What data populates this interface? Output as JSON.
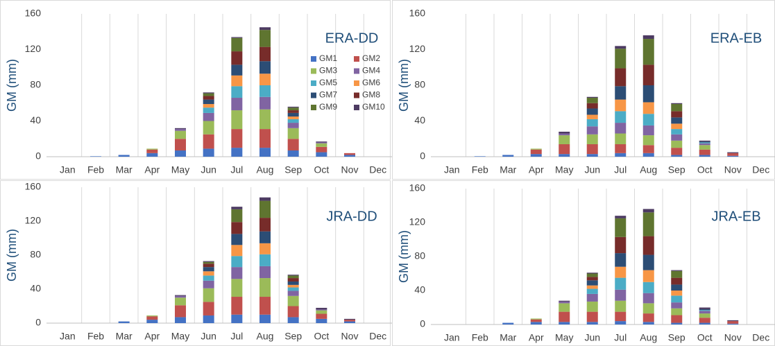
{
  "chart_data": [
    {
      "type": "bar",
      "stacked": true,
      "title": "ERA-DD",
      "y_label": "GM (mm)",
      "legend": true,
      "grid": "x",
      "categories": [
        "Jan",
        "Feb",
        "Mar",
        "Apr",
        "May",
        "Jun",
        "Jul",
        "Aug",
        "Sep",
        "Oct",
        "Nov",
        "Dec"
      ],
      "ylim": [
        0,
        160
      ],
      "yticks": [
        0,
        40,
        80,
        120,
        160
      ],
      "series": [
        {
          "name": "GM1",
          "color": "#4472c4",
          "values": [
            0,
            0.5,
            2,
            4,
            7,
            9,
            10,
            10,
            7,
            5,
            2,
            0
          ]
        },
        {
          "name": "GM2",
          "color": "#c0504d",
          "values": [
            0,
            0,
            0,
            4,
            13,
            16,
            21,
            21,
            13,
            6,
            2,
            0
          ]
        },
        {
          "name": "GM3",
          "color": "#9bbb59",
          "values": [
            0,
            0,
            0,
            1,
            9,
            15,
            21,
            22,
            12,
            4,
            0,
            0
          ]
        },
        {
          "name": "GM4",
          "color": "#8064a2",
          "values": [
            0,
            0,
            0,
            0,
            2,
            9,
            14,
            14,
            6,
            1,
            0,
            0
          ]
        },
        {
          "name": "GM5",
          "color": "#4bacc6",
          "values": [
            0,
            0,
            0,
            0,
            0,
            6,
            13,
            13,
            4,
            0,
            0,
            0
          ]
        },
        {
          "name": "GM6",
          "color": "#f79646",
          "values": [
            0,
            0,
            0,
            0,
            0,
            4,
            12,
            13,
            3,
            0,
            0,
            0
          ]
        },
        {
          "name": "GM7",
          "color": "#2c4d75",
          "values": [
            0,
            0,
            0,
            0,
            0,
            5,
            12,
            14,
            4,
            0,
            0,
            0
          ]
        },
        {
          "name": "GM8",
          "color": "#772c2a",
          "values": [
            0,
            0,
            0,
            0,
            0,
            4,
            15,
            16,
            3,
            0,
            0,
            0
          ]
        },
        {
          "name": "GM9",
          "color": "#5f7530",
          "values": [
            0,
            0,
            0,
            0,
            0,
            3,
            15,
            19,
            3,
            0,
            0,
            0
          ]
        },
        {
          "name": "GM10",
          "color": "#4d3b62",
          "values": [
            0,
            0,
            0,
            0,
            1,
            1,
            1,
            3,
            1,
            1,
            0,
            0
          ]
        }
      ]
    },
    {
      "type": "bar",
      "stacked": true,
      "title": "ERA-EB",
      "y_label": "GM (mm)",
      "legend": false,
      "grid": "x",
      "categories": [
        "Jan",
        "Feb",
        "Mar",
        "Apr",
        "May",
        "Jun",
        "Jul",
        "Aug",
        "Sep",
        "Oct",
        "Nov",
        "Dec"
      ],
      "ylim": [
        0,
        160
      ],
      "yticks": [
        0,
        40,
        80,
        120,
        160
      ],
      "series": [
        {
          "name": "GM1",
          "color": "#4472c4",
          "values": [
            0,
            0.5,
            2,
            3,
            3,
            3,
            4,
            4,
            2,
            2,
            1,
            0
          ]
        },
        {
          "name": "GM2",
          "color": "#c0504d",
          "values": [
            0,
            0,
            0,
            5,
            11,
            11,
            10,
            9,
            8,
            6,
            3,
            0
          ]
        },
        {
          "name": "GM3",
          "color": "#9bbb59",
          "values": [
            0,
            0,
            0,
            1,
            10,
            11,
            12,
            11,
            8,
            5,
            0,
            0
          ]
        },
        {
          "name": "GM4",
          "color": "#8064a2",
          "values": [
            0,
            0,
            0,
            0,
            2,
            9,
            12,
            11,
            7,
            2,
            0,
            0
          ]
        },
        {
          "name": "GM5",
          "color": "#4bacc6",
          "values": [
            0,
            0,
            0,
            0,
            0,
            8,
            13,
            13,
            6,
            1,
            0,
            0
          ]
        },
        {
          "name": "GM6",
          "color": "#f79646",
          "values": [
            0,
            0,
            0,
            0,
            0,
            5,
            13,
            13,
            6,
            0,
            0,
            0
          ]
        },
        {
          "name": "GM7",
          "color": "#2c4d75",
          "values": [
            0,
            0,
            0,
            0,
            0,
            7,
            15,
            19,
            7,
            1,
            0,
            0
          ]
        },
        {
          "name": "GM8",
          "color": "#772c2a",
          "values": [
            0,
            0,
            0,
            0,
            0,
            6,
            20,
            23,
            7,
            0,
            0,
            0
          ]
        },
        {
          "name": "GM9",
          "color": "#5f7530",
          "values": [
            0,
            0,
            0,
            0,
            0,
            6,
            22,
            29,
            8,
            0,
            0,
            0
          ]
        },
        {
          "name": "GM10",
          "color": "#4d3b62",
          "values": [
            0,
            0,
            0,
            0,
            2,
            1,
            3,
            4,
            1,
            1,
            1,
            0
          ]
        }
      ]
    },
    {
      "type": "bar",
      "stacked": true,
      "title": "JRA-DD",
      "y_label": "GM (mm)",
      "legend": false,
      "grid": "x",
      "categories": [
        "Jan",
        "Feb",
        "Mar",
        "Apr",
        "May",
        "Jun",
        "Jul",
        "Aug",
        "Sep",
        "Oct",
        "Nov",
        "Dec"
      ],
      "ylim": [
        0,
        160
      ],
      "yticks": [
        0,
        40,
        80,
        120,
        160
      ],
      "series": [
        {
          "name": "GM1",
          "color": "#4472c4",
          "values": [
            0,
            0,
            2,
            4,
            7,
            9,
            10,
            10,
            7,
            5,
            2,
            0
          ]
        },
        {
          "name": "GM2",
          "color": "#c0504d",
          "values": [
            0,
            0,
            0,
            4,
            14,
            16,
            21,
            21,
            13,
            6,
            2,
            0
          ]
        },
        {
          "name": "GM3",
          "color": "#9bbb59",
          "values": [
            0,
            0,
            0,
            1,
            9,
            16,
            21,
            22,
            12,
            4,
            0,
            0
          ]
        },
        {
          "name": "GM4",
          "color": "#8064a2",
          "values": [
            0,
            0,
            0,
            0,
            2,
            9,
            14,
            14,
            6,
            1,
            0,
            0
          ]
        },
        {
          "name": "GM5",
          "color": "#4bacc6",
          "values": [
            0,
            0,
            0,
            0,
            0,
            6,
            13,
            14,
            4,
            0,
            0,
            0
          ]
        },
        {
          "name": "GM6",
          "color": "#f79646",
          "values": [
            0,
            0,
            0,
            0,
            0,
            5,
            13,
            13,
            3,
            0,
            0,
            0
          ]
        },
        {
          "name": "GM7",
          "color": "#2c4d75",
          "values": [
            0,
            0,
            0,
            0,
            0,
            5,
            13,
            14,
            4,
            0,
            0,
            0
          ]
        },
        {
          "name": "GM8",
          "color": "#772c2a",
          "values": [
            0,
            0,
            0,
            0,
            0,
            4,
            14,
            16,
            4,
            0,
            0,
            0
          ]
        },
        {
          "name": "GM9",
          "color": "#5f7530",
          "values": [
            0,
            0,
            0,
            0,
            0,
            2,
            15,
            20,
            3,
            0,
            0,
            0
          ]
        },
        {
          "name": "GM10",
          "color": "#4d3b62",
          "values": [
            0,
            0,
            0,
            0,
            1,
            1,
            3,
            4,
            1,
            2,
            1,
            0
          ]
        }
      ]
    },
    {
      "type": "bar",
      "stacked": true,
      "title": "JRA-EB",
      "y_label": "GM (mm)",
      "legend": false,
      "grid": "x",
      "categories": [
        "Jan",
        "Feb",
        "Mar",
        "Apr",
        "May",
        "Jun",
        "Jul",
        "Aug",
        "Sep",
        "Oct",
        "Nov",
        "Dec"
      ],
      "ylim": [
        0,
        160
      ],
      "yticks": [
        0,
        40,
        80,
        120,
        160
      ],
      "series": [
        {
          "name": "GM1",
          "color": "#4472c4",
          "values": [
            0,
            0,
            2,
            3,
            3,
            3,
            4,
            3,
            2,
            2,
            1,
            0
          ]
        },
        {
          "name": "GM2",
          "color": "#c0504d",
          "values": [
            0,
            0,
            0,
            3,
            12,
            12,
            11,
            10,
            9,
            6,
            3,
            0
          ]
        },
        {
          "name": "GM3",
          "color": "#9bbb59",
          "values": [
            0,
            0,
            0,
            1,
            10,
            12,
            13,
            12,
            8,
            5,
            0,
            0
          ]
        },
        {
          "name": "GM4",
          "color": "#8064a2",
          "values": [
            0,
            0,
            0,
            0,
            2,
            9,
            13,
            12,
            7,
            3,
            0,
            0
          ]
        },
        {
          "name": "GM5",
          "color": "#4bacc6",
          "values": [
            0,
            0,
            0,
            0,
            0,
            6,
            14,
            13,
            8,
            1,
            0,
            0
          ]
        },
        {
          "name": "GM6",
          "color": "#f79646",
          "values": [
            0,
            0,
            0,
            0,
            0,
            4,
            13,
            14,
            6,
            0,
            0,
            0
          ]
        },
        {
          "name": "GM7",
          "color": "#2c4d75",
          "values": [
            0,
            0,
            0,
            0,
            0,
            6,
            16,
            18,
            7,
            1,
            0,
            0
          ]
        },
        {
          "name": "GM8",
          "color": "#772c2a",
          "values": [
            0,
            0,
            0,
            0,
            0,
            4,
            19,
            22,
            8,
            0,
            0,
            0
          ]
        },
        {
          "name": "GM9",
          "color": "#5f7530",
          "values": [
            0,
            0,
            0,
            0,
            0,
            4,
            22,
            28,
            8,
            0,
            0,
            0
          ]
        },
        {
          "name": "GM10",
          "color": "#4d3b62",
          "values": [
            0,
            0,
            0,
            0,
            1,
            1,
            3,
            4,
            1,
            2,
            1,
            0
          ]
        }
      ]
    }
  ]
}
